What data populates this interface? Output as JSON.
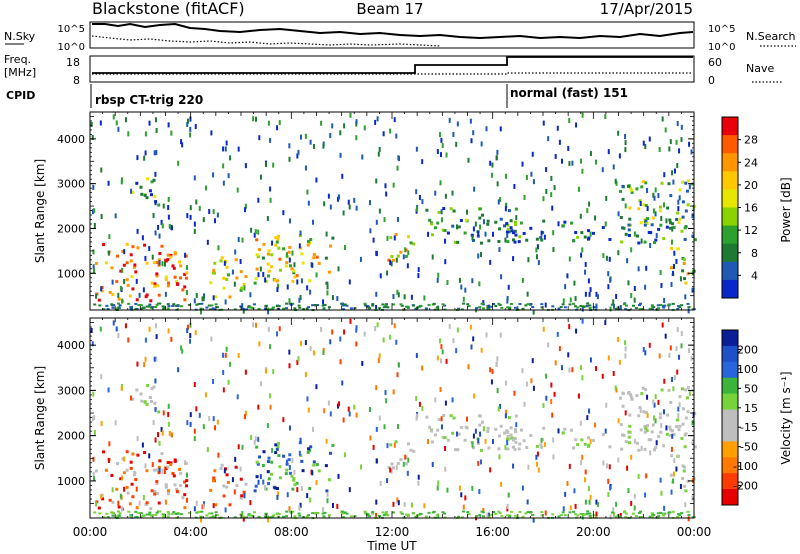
{
  "header": {
    "station": "Blackstone (fitACF)",
    "beam": "Beam 17",
    "date": "17/Apr/2015"
  },
  "status_panels": {
    "nsky_label": "N.Sky",
    "nsky_ticks": [
      "10^5",
      "10^0"
    ],
    "nsearch_label": "N.Search",
    "nsearch_ticks": [
      "10^5",
      "10^0"
    ],
    "freq_label": "Freq.",
    "freq_unit": "[MHz]",
    "freq_ticks": [
      "18",
      "8"
    ],
    "nave_label": "Nave",
    "nave_ticks": [
      "60",
      "0"
    ],
    "cpid_label": "CPID",
    "cpid_modes": [
      {
        "name": "rbsp CT-trig 220",
        "start_hour": 0
      },
      {
        "name": "normal (fast) 151",
        "start_hour": 16.5
      }
    ]
  },
  "chart_data": [
    {
      "type": "heatmap",
      "panel": "power",
      "xlabel": "Time UT",
      "ylabel": "Slant Range [km]",
      "x_range_hours": [
        0,
        24
      ],
      "ylim": [
        180,
        4600
      ],
      "yticks": [
        "4000",
        "3000",
        "2000",
        "1000"
      ],
      "xticks": [
        "00:00",
        "04:00",
        "08:00",
        "12:00",
        "16:00",
        "20:00",
        "00:00"
      ],
      "colorbar": {
        "label": "Power [dB]",
        "ticks": [
          "28",
          "24",
          "20",
          "16",
          "12",
          "8",
          "4"
        ],
        "colors": [
          "#e8000b",
          "#ff5a00",
          "#ff9600",
          "#ffc800",
          "#e6e600",
          "#8cd200",
          "#2da02d",
          "#1e7a32",
          "#1e5ab4",
          "#0a28c8"
        ]
      },
      "echo_regions": [
        {
          "t0": 0.1,
          "t1": 3.8,
          "r0": 400,
          "r1": 1700,
          "level": 0.85
        },
        {
          "t0": 1.5,
          "t1": 2.8,
          "r0": 2500,
          "r1": 3200,
          "level": 0.3
        },
        {
          "t0": 4.7,
          "t1": 6.2,
          "r0": 500,
          "r1": 1400,
          "level": 0.6
        },
        {
          "t0": 6.5,
          "t1": 9.7,
          "r0": 800,
          "r1": 1900,
          "level": 0.55
        },
        {
          "t0": 11.8,
          "t1": 13.0,
          "r0": 1300,
          "r1": 1900,
          "level": 0.6
        },
        {
          "t0": 13.2,
          "t1": 17.0,
          "r0": 1700,
          "r1": 2500,
          "level": 0.25
        },
        {
          "t0": 16.5,
          "t1": 24.0,
          "r0": 1700,
          "r1": 2200,
          "level": 0.2
        },
        {
          "t0": 21.0,
          "t1": 24.0,
          "r0": 2100,
          "r1": 3100,
          "level": 0.4
        },
        {
          "t0": 23.0,
          "t1": 24.0,
          "r0": 800,
          "r1": 1600,
          "level": 0.5
        }
      ]
    },
    {
      "type": "heatmap",
      "panel": "velocity",
      "xlabel": "Time UT",
      "ylabel": "Slant Range [km]",
      "x_range_hours": [
        0,
        24
      ],
      "ylim": [
        180,
        4600
      ],
      "yticks": [
        "4000",
        "3000",
        "2000",
        "1000"
      ],
      "xticks": [
        "00:00",
        "04:00",
        "08:00",
        "12:00",
        "16:00",
        "20:00",
        "00:00"
      ],
      "colorbar": {
        "label": "Velocity [m s⁻¹]",
        "ticks": [
          "200",
          "100",
          "50",
          "15",
          "-15",
          "-50",
          "-100",
          "-200"
        ],
        "colors": [
          "#0a1e96",
          "#1e50c8",
          "#2864dc",
          "#3cb43c",
          "#78d23c",
          "#bebebe",
          "#bebebe",
          "#ffa000",
          "#ff7800",
          "#ff3c00",
          "#e60000"
        ]
      }
    }
  ]
}
